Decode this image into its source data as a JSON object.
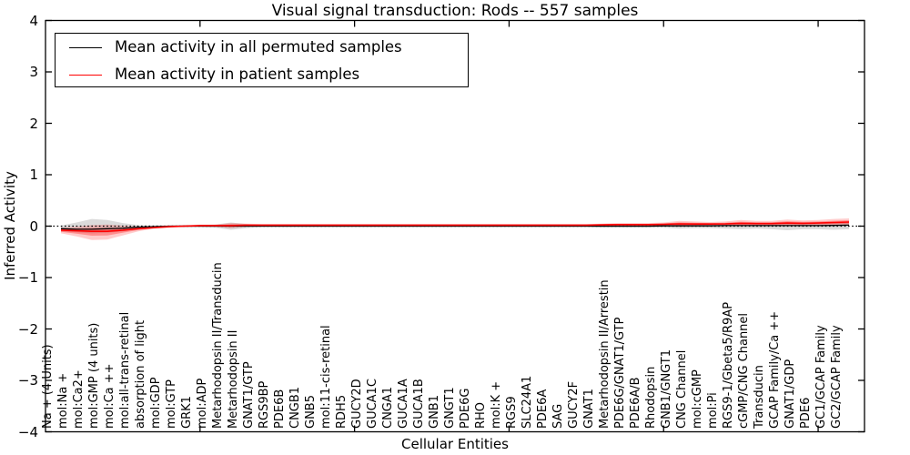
{
  "chart_data": {
    "type": "line",
    "title": "Visual signal transduction: Rods -- 557 samples",
    "xlabel": "Cellular Entities",
    "ylabel": "Inferred Activity",
    "ylim": [
      -4,
      4
    ],
    "xlim": [
      0,
      53
    ],
    "ytick_labels": [
      "4",
      "3",
      "2",
      "1",
      "0",
      "−1",
      "−2",
      "−3",
      "−4"
    ],
    "x_axis_tick_positions": [
      10,
      20,
      30,
      40,
      50
    ],
    "grid": false,
    "zero_line": true,
    "legend_position": "upper left",
    "categories": [
      "Na + (4 Units)",
      "mol:Na +",
      "mol:Ca2+",
      "mol:GMP (4 units)",
      "mol:Ca ++",
      "mol:all-trans-retinal",
      "absorption of light",
      "mol:GDP",
      "mol:GTP",
      "GRK1",
      "mol:ADP",
      "Metarhodopsin II/Transducin",
      "Metarhodopsin II",
      "GNAT1/GTP",
      "RGS9BP",
      "PDE6B",
      "CNGB1",
      "GNB5",
      "mol:11-cis-retinal",
      "RDH5",
      "GUCY2D",
      "GUCA1C",
      "CNGA1",
      "GUCA1A",
      "GUCA1B",
      "GNB1",
      "GNGT1",
      "PDE6G",
      "RHO",
      "mol:K +",
      "RGS9",
      "SLC24A1",
      "PDE6A",
      "SAG",
      "GUCY2F",
      "GNAT1",
      "Metarhodopsin II/Arrestin",
      "PDE6G/GNAT1/GTP",
      "PDE6A/B",
      "Rhodopsin",
      "GNB1/GNGT1",
      "CNG Channel",
      "mol:cGMP",
      "mol:Pi",
      "RGS9-1/Gbeta5/R9AP",
      "cGMP/CNG Channel",
      "Transducin",
      "GCAP Family/Ca ++",
      "GNAT1/GDP",
      "PDE6",
      "GC1/GCAP Family",
      "GC2/GCAP Family"
    ],
    "series": [
      {
        "name": "Mean activity in all permuted samples",
        "color": "#000000",
        "values": [
          -0.05,
          -0.06,
          -0.06,
          -0.05,
          -0.04,
          -0.02,
          -0.01,
          0,
          0,
          0,
          0,
          0,
          0,
          0,
          0,
          0,
          0,
          0,
          0,
          0,
          0,
          0,
          0,
          0,
          0,
          0,
          0,
          0,
          0,
          0,
          0,
          0,
          0,
          0,
          0,
          0,
          0,
          0,
          0,
          0.005,
          0.005,
          0.005,
          0.005,
          0.01,
          0.01,
          0.01,
          0.01,
          0.01,
          0.01,
          0.01,
          0.015,
          0.02
        ]
      },
      {
        "name": "Mean activity in patient samples",
        "color": "#ff0000",
        "values": [
          -0.08,
          -0.09,
          -0.1,
          -0.1,
          -0.08,
          -0.05,
          -0.03,
          -0.01,
          0,
          0.01,
          0.01,
          0.01,
          0.02,
          0.02,
          0.02,
          0.02,
          0.02,
          0.02,
          0.02,
          0.02,
          0.02,
          0.02,
          0.02,
          0.02,
          0.02,
          0.02,
          0.02,
          0.02,
          0.02,
          0.02,
          0.02,
          0.02,
          0.02,
          0.02,
          0.02,
          0.025,
          0.03,
          0.03,
          0.03,
          0.035,
          0.045,
          0.04,
          0.04,
          0.045,
          0.055,
          0.05,
          0.05,
          0.06,
          0.055,
          0.06,
          0.07,
          0.08
        ]
      }
    ],
    "bands": [
      {
        "name": "permuted-range",
        "color": "#bdbdbd",
        "lo": [
          -0.1,
          -0.12,
          -0.14,
          -0.13,
          -0.1,
          -0.06,
          -0.04,
          -0.02,
          -0.02,
          -0.02,
          -0.03,
          -0.07,
          -0.04,
          -0.02,
          -0.02,
          -0.02,
          -0.02,
          -0.02,
          -0.02,
          -0.02,
          -0.02,
          -0.02,
          -0.02,
          -0.02,
          -0.02,
          -0.02,
          -0.02,
          -0.02,
          -0.02,
          -0.02,
          -0.02,
          -0.02,
          -0.02,
          -0.02,
          -0.02,
          -0.03,
          -0.03,
          -0.03,
          -0.03,
          -0.03,
          -0.05,
          -0.04,
          -0.04,
          -0.05,
          -0.06,
          -0.05,
          -0.06,
          -0.08,
          -0.06,
          -0.06,
          -0.07,
          -0.06
        ],
        "hi": [
          0.01,
          0.07,
          0.14,
          0.12,
          0.06,
          0.02,
          0.01,
          0.01,
          0.02,
          0.02,
          0.03,
          0.07,
          0.04,
          0.02,
          0.02,
          0.02,
          0.02,
          0.02,
          0.02,
          0.02,
          0.02,
          0.02,
          0.02,
          0.02,
          0.02,
          0.02,
          0.02,
          0.02,
          0.02,
          0.02,
          0.02,
          0.02,
          0.02,
          0.02,
          0.02,
          0.03,
          0.03,
          0.03,
          0.03,
          0.03,
          0.04,
          0.04,
          0.04,
          0.04,
          0.05,
          0.04,
          0.05,
          0.05,
          0.05,
          0.05,
          0.06,
          0.07
        ]
      },
      {
        "name": "patient-range",
        "color": "#ff0000",
        "lo": [
          -0.14,
          -0.2,
          -0.27,
          -0.26,
          -0.18,
          -0.1,
          -0.05,
          -0.03,
          -0.01,
          -0.01,
          -0.01,
          -0.04,
          -0.01,
          0,
          0,
          0,
          0,
          0,
          0,
          0,
          0,
          0,
          0,
          0,
          0,
          0,
          0,
          0,
          0,
          0,
          0,
          0,
          0,
          0,
          0,
          0,
          0,
          0,
          0,
          0.01,
          -0.01,
          0,
          0.01,
          0.01,
          0,
          0.01,
          0.01,
          0,
          0.01,
          0.01,
          0.01,
          0.02
        ],
        "hi": [
          -0.03,
          -0.01,
          0.02,
          0.03,
          0.01,
          -0.01,
          0,
          0.01,
          0.02,
          0.03,
          0.03,
          0.06,
          0.05,
          0.04,
          0.04,
          0.04,
          0.04,
          0.04,
          0.04,
          0.04,
          0.04,
          0.04,
          0.04,
          0.04,
          0.04,
          0.04,
          0.04,
          0.04,
          0.04,
          0.04,
          0.04,
          0.04,
          0.04,
          0.04,
          0.04,
          0.05,
          0.06,
          0.06,
          0.06,
          0.07,
          0.1,
          0.09,
          0.08,
          0.09,
          0.12,
          0.1,
          0.1,
          0.13,
          0.11,
          0.12,
          0.14,
          0.15
        ]
      }
    ],
    "colors": {
      "frame": "#000000",
      "zero_line": "#000000",
      "permuted_band": "#bdbdbd",
      "patient_band": "#ff0000"
    }
  }
}
